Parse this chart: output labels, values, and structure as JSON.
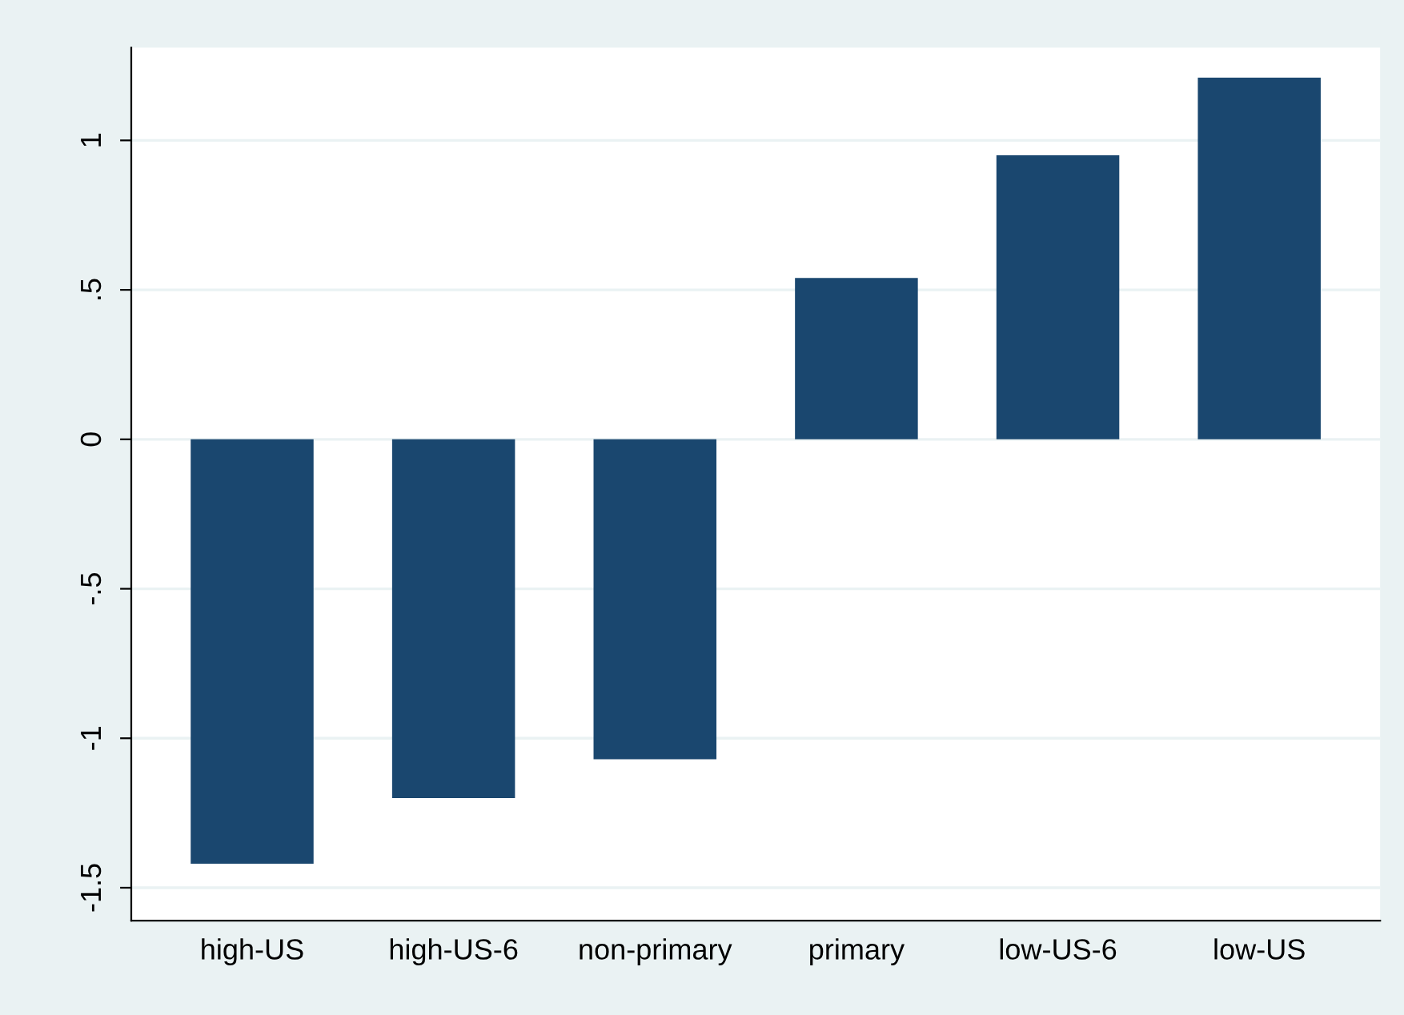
{
  "chart_data": {
    "type": "bar",
    "categories": [
      "high-US",
      "high-US-6",
      "non-primary",
      "primary",
      "low-US-6",
      "low-US"
    ],
    "values": [
      -1.42,
      -1.2,
      -1.07,
      0.54,
      0.95,
      1.21
    ],
    "color": "#1a476f",
    "ylim": [
      -1.61,
      1.31
    ],
    "yticks": [
      {
        "value": -1.5,
        "label": "-1.5"
      },
      {
        "value": -1,
        "label": "-1"
      },
      {
        "value": -0.5,
        "label": "-.5"
      },
      {
        "value": 0,
        "label": "0"
      },
      {
        "value": 0.5,
        "label": ".5"
      },
      {
        "value": 1,
        "label": "1"
      }
    ],
    "grid": "y"
  }
}
